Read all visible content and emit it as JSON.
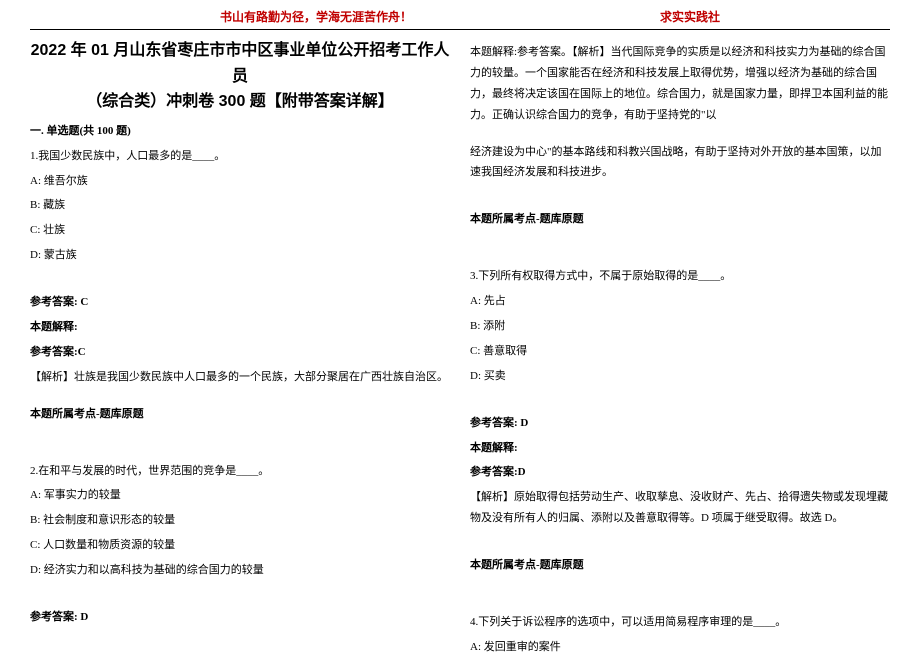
{
  "header": {
    "left": "书山有路勤为径，学海无涯苦作舟！",
    "right": "求实实践社"
  },
  "title_line1": "2022 年 01 月山东省枣庄市市中区事业单位公开招考工作人员",
  "title_line2": "（综合类）冲刺卷 300 题【附带答案详解】",
  "section_header": "一. 单选题(共 100 题)",
  "q1": {
    "stem": "1.我国少数民族中，人口最多的是____。",
    "optA": "A: 维吾尔族",
    "optB": "B: 藏族",
    "optC": "C: 壮族",
    "optD": "D: 蒙古族",
    "ref_ans_label": "参考答案: C",
    "explain_label": "本题解释:",
    "ref_ans2": "参考答案:C",
    "analysis": "【解析】壮族是我国少数民族中人口最多的一个民族，大部分聚居在广西壮族自治区。",
    "topic": "本题所属考点-题库原题"
  },
  "q2": {
    "stem": "2.在和平与发展的时代，世界范围的竞争是____。",
    "optA": "A: 军事实力的较量",
    "optB": "B: 社会制度和意识形态的较量",
    "optC": "C: 人口数量和物质资源的较量",
    "optD": "D: 经济实力和以高科技为基础的综合国力的较量",
    "ref_ans_label": "参考答案: D",
    "explain_label": "本题解释:参考答案。【解析】当代国际竞争的实质是以经济和科技实力为基础的综合国力的较量。一个国家能否在经济和科技发展上取得优势，增强以经济为基础的综合国力，最终将决定该国在国际上的地位。综合国力，就是国家力量，即捍卫本国利益的能力。正确认识综合国力的竞争，有助于坚持党的\"以",
    "explain_cont": "经济建设为中心\"的基本路线和科教兴国战略，有助于坚持对外开放的基本国策，以加速我国经济发展和科技进步。",
    "topic": "本题所属考点-题库原题"
  },
  "q3": {
    "stem": "3.下列所有权取得方式中，不属于原始取得的是____。",
    "optA": "A: 先占",
    "optB": "B: 添附",
    "optC": "C: 善意取得",
    "optD": "D: 买卖",
    "ref_ans_label": "参考答案: D",
    "explain_label": "本题解释:",
    "ref_ans2": "参考答案:D",
    "analysis": "【解析】原始取得包括劳动生产、收取孳息、没收财产、先占、拾得遗失物或发现埋藏物及没有所有人的归属、添附以及善意取得等。D 项属于继受取得。故选 D。",
    "topic": "本题所属考点-题库原题"
  },
  "q4": {
    "stem": "4.下列关于诉讼程序的选项中，可以适用简易程序审理的是____。",
    "optA": "A: 发回重审的案件"
  }
}
